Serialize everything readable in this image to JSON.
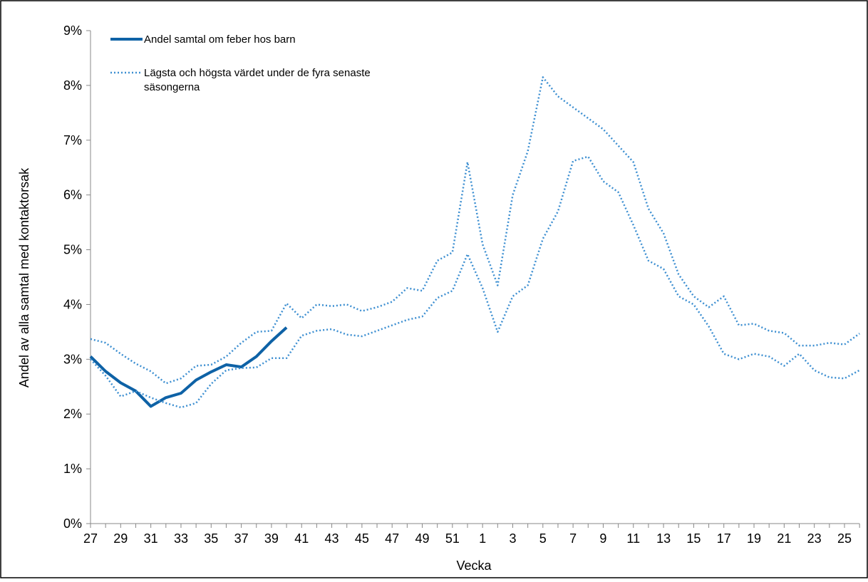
{
  "chart_data": {
    "type": "line",
    "x_label": "Vecka",
    "y_label": "Andel av alla samtal med kontaktorsak",
    "categories": [
      "27",
      null,
      "29",
      null,
      "31",
      null,
      "33",
      null,
      "35",
      null,
      "37",
      null,
      "39",
      null,
      "41",
      null,
      "43",
      null,
      "45",
      null,
      "47",
      null,
      "49",
      null,
      "51",
      null,
      "1",
      null,
      "3",
      null,
      "5",
      null,
      "7",
      null,
      "9",
      null,
      "11",
      null,
      "13",
      null,
      "15",
      null,
      "17",
      null,
      "19",
      null,
      "21",
      null,
      "23",
      null,
      "25",
      null
    ],
    "ylim": [
      0,
      9
    ],
    "yticks": [
      {
        "value": 0,
        "label": "0%"
      },
      {
        "value": 1,
        "label": "1%"
      },
      {
        "value": 2,
        "label": "2%"
      },
      {
        "value": 3,
        "label": "3%"
      },
      {
        "value": 4,
        "label": "4%"
      },
      {
        "value": 5,
        "label": "5%"
      },
      {
        "value": 6,
        "label": "6%"
      },
      {
        "value": 7,
        "label": "7%"
      },
      {
        "value": 8,
        "label": "8%"
      },
      {
        "value": 9,
        "label": "9%"
      }
    ],
    "legend": "top-left",
    "series": [
      {
        "name": "Andel samtal om feber hos barn",
        "color": "#0e62a6",
        "style": "solid",
        "values": [
          3.05,
          2.78,
          2.57,
          2.42,
          2.14,
          2.3,
          2.38,
          2.62,
          2.77,
          2.9,
          2.86,
          3.05,
          3.33,
          3.58,
          null,
          null,
          null,
          null,
          null,
          null,
          null,
          null,
          null,
          null,
          null,
          null,
          null,
          null,
          null,
          null,
          null,
          null,
          null,
          null,
          null,
          null,
          null,
          null,
          null,
          null,
          null,
          null,
          null,
          null,
          null,
          null,
          null,
          null,
          null,
          null,
          null,
          null
        ]
      },
      {
        "name": "Lägsta och högsta värdet under de fyra senaste säsongerna",
        "color": "#3d8fd1",
        "style": "dotted",
        "values": [
          3.37,
          3.3,
          3.1,
          2.92,
          2.78,
          2.56,
          2.65,
          2.88,
          2.9,
          3.05,
          3.3,
          3.5,
          3.52,
          4.02,
          3.75,
          4.0,
          3.97,
          4.0,
          3.88,
          3.95,
          4.05,
          4.3,
          4.25,
          4.8,
          4.95,
          6.6,
          5.1,
          4.35,
          6.0,
          6.8,
          8.15,
          7.8,
          7.6,
          7.4,
          7.2,
          6.9,
          6.6,
          5.75,
          5.3,
          4.55,
          4.15,
          3.95,
          4.15,
          3.62,
          3.65,
          3.52,
          3.48,
          3.25,
          3.25,
          3.3,
          3.27,
          3.47
        ]
      },
      {
        "color": "#3d8fd1",
        "style": "dotted",
        "values": [
          3.0,
          2.7,
          2.32,
          2.42,
          2.3,
          2.2,
          2.12,
          2.2,
          2.55,
          2.8,
          2.84,
          2.85,
          3.02,
          3.02,
          3.43,
          3.52,
          3.55,
          3.45,
          3.42,
          3.52,
          3.62,
          3.72,
          3.78,
          4.12,
          4.25,
          4.92,
          4.3,
          3.5,
          4.15,
          4.35,
          5.2,
          5.7,
          6.62,
          6.7,
          6.25,
          6.05,
          5.45,
          4.8,
          4.65,
          4.15,
          4.0,
          3.6,
          3.1,
          3.0,
          3.1,
          3.05,
          2.88,
          3.1,
          2.8,
          2.67,
          2.65,
          2.8
        ]
      }
    ]
  }
}
